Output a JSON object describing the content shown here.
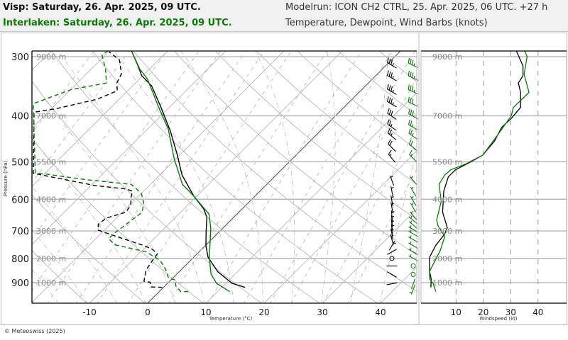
{
  "header": {
    "station1_title": "Visp: Saturday, 26. Apr. 2025, 09 UTC.",
    "station2_title": "Interlaken: Saturday, 26. Apr. 2025, 09 UTC.",
    "modelrun": "Modelrun: ICON CH2 CTRL, 25. Apr. 2025, 06 UTC. +27 h",
    "subtitle": "Temperature, Dewpoint, Wind Barbs (knots)"
  },
  "footer": {
    "copyright": "© Meteoswiss (2025)"
  },
  "colors": {
    "station1": "#000000",
    "station2": "#0a7a0a",
    "grid": "#aaaaaa",
    "header_bg": "#f0f0f0"
  },
  "chart_data": {
    "type": "line",
    "subtype": "skew-T log-p",
    "xlabel": "Temperature (°C)",
    "ylabel": "Pressure (hPa)",
    "x_ticks": [
      "-10",
      "0",
      "10",
      "20",
      "30",
      "40"
    ],
    "x_tick_values": [
      -10,
      0,
      10,
      20,
      30,
      40
    ],
    "y_ticks": [
      "300",
      "400",
      "500",
      "600",
      "700",
      "800",
      "900"
    ],
    "y_tick_values": [
      300,
      400,
      500,
      600,
      700,
      800,
      900
    ],
    "y_scale": "log",
    "ylim": [
      1000,
      290
    ],
    "height_labels": [
      {
        "p": 300,
        "label": "9000 m"
      },
      {
        "p": 400,
        "label": "7000 m"
      },
      {
        "p": 500,
        "label": "5500 m"
      },
      {
        "p": 600,
        "label": "4000 m"
      },
      {
        "p": 700,
        "label": "3000 m"
      },
      {
        "p": 800,
        "label": "2000 m"
      },
      {
        "p": 900,
        "label": "1000 m"
      }
    ],
    "grid": true,
    "series": [
      {
        "name": "Visp",
        "kind": "temperature",
        "color": "#000000",
        "style": "solid",
        "points": [
          [
            921,
            14.0
          ],
          [
            903,
            11.1
          ],
          [
            853,
            6.6
          ],
          [
            796,
            2.5
          ],
          [
            752,
            0.1
          ],
          [
            700,
            -2.4
          ],
          [
            655,
            -4.6
          ],
          [
            629,
            -6.6
          ],
          [
            591,
            -10.5
          ],
          [
            533,
            -16.2
          ],
          [
            483,
            -20.5
          ],
          [
            431,
            -25.7
          ],
          [
            384,
            -31.4
          ],
          [
            346,
            -36.7
          ],
          [
            329,
            -40.2
          ],
          [
            312,
            -42.8
          ],
          [
            290,
            -46.5
          ]
        ]
      },
      {
        "name": "Interlaken",
        "kind": "temperature",
        "color": "#0a7a0a",
        "style": "solid",
        "points": [
          [
            940,
            12.1
          ],
          [
            903,
            8.4
          ],
          [
            862,
            5.8
          ],
          [
            796,
            2.7
          ],
          [
            692,
            -2.0
          ],
          [
            645,
            -4.8
          ],
          [
            591,
            -10.5
          ],
          [
            558,
            -14.5
          ],
          [
            520,
            -17.8
          ],
          [
            494,
            -20.2
          ],
          [
            426,
            -26.5
          ],
          [
            384,
            -31.8
          ],
          [
            334,
            -38.7
          ],
          [
            319,
            -41.6
          ],
          [
            290,
            -46.5
          ]
        ]
      },
      {
        "name": "Visp",
        "kind": "dewpoint",
        "color": "#000000",
        "style": "dashed",
        "points": [
          [
            921,
            -0.2
          ],
          [
            919,
            -2.2
          ],
          [
            898,
            -3.2
          ],
          [
            894,
            -4.4
          ],
          [
            846,
            -6.0
          ],
          [
            803,
            -6.6
          ],
          [
            783,
            -6.8
          ],
          [
            765,
            -8.5
          ],
          [
            752,
            -10.5
          ],
          [
            710,
            -18.6
          ],
          [
            697,
            -21.1
          ],
          [
            677,
            -22.1
          ],
          [
            657,
            -21.7
          ],
          [
            639,
            -19.4
          ],
          [
            617,
            -19.8
          ],
          [
            594,
            -21.1
          ],
          [
            577,
            -21.9
          ],
          [
            571,
            -23.3
          ],
          [
            561,
            -29.4
          ],
          [
            529,
            -42.0
          ],
          [
            393,
            -52.4
          ],
          [
            386,
            -49.1
          ],
          [
            369,
            -43.8
          ],
          [
            354,
            -41.8
          ],
          [
            341,
            -43.2
          ],
          [
            326,
            -44.0
          ],
          [
            305,
            -46.7
          ],
          [
            293,
            -49.9
          ]
        ]
      },
      {
        "name": "Interlaken",
        "kind": "dewpoint",
        "color": "#0a7a0a",
        "style": "dashed",
        "points": [
          [
            940,
            5.0
          ],
          [
            940,
            3.7
          ],
          [
            915,
            1.9
          ],
          [
            888,
            0.7
          ],
          [
            881,
            -0.7
          ],
          [
            846,
            -2.6
          ],
          [
            808,
            -5.2
          ],
          [
            775,
            -9.1
          ],
          [
            749,
            -15.6
          ],
          [
            727,
            -17.8
          ],
          [
            710,
            -17.8
          ],
          [
            661,
            -17.0
          ],
          [
            639,
            -16.6
          ],
          [
            610,
            -18.0
          ],
          [
            583,
            -20.0
          ],
          [
            558,
            -23.3
          ],
          [
            546,
            -31.6
          ],
          [
            527,
            -41.8
          ],
          [
            377,
            -54.0
          ],
          [
            352,
            -49.9
          ],
          [
            341,
            -45.0
          ],
          [
            319,
            -47.5
          ],
          [
            298,
            -50.5
          ],
          [
            290,
            -50.3
          ]
        ]
      }
    ],
    "wind_barbs": [
      {
        "name": "Visp",
        "color": "#000000",
        "barbs": [
          [
            313,
            300,
            35
          ],
          [
            333,
            300,
            35
          ],
          [
            356,
            300,
            34
          ],
          [
            378,
            300,
            34
          ],
          [
            401,
            305,
            30
          ],
          [
            423,
            305,
            27
          ],
          [
            442,
            310,
            25
          ],
          [
            467,
            315,
            22
          ],
          [
            492,
            320,
            17
          ],
          [
            548,
            340,
            7
          ],
          [
            578,
            350,
            6
          ],
          [
            605,
            350,
            5
          ],
          [
            625,
            350,
            5
          ],
          [
            650,
            355,
            6
          ],
          [
            665,
            355,
            7
          ],
          [
            680,
            355,
            7
          ],
          [
            695,
            355,
            7
          ],
          [
            710,
            350,
            6
          ],
          [
            730,
            345,
            4
          ],
          [
            752,
            30,
            3
          ],
          [
            775,
            60,
            2
          ],
          [
            800,
            0,
            0
          ],
          [
            830,
            90,
            1
          ],
          [
            865,
            120,
            1
          ],
          [
            905,
            80,
            1
          ]
        ]
      },
      {
        "name": "Interlaken",
        "color": "#0a7a0a",
        "barbs": [
          [
            313,
            295,
            36
          ],
          [
            333,
            295,
            35
          ],
          [
            356,
            295,
            36
          ],
          [
            378,
            295,
            32
          ],
          [
            401,
            300,
            30
          ],
          [
            423,
            300,
            27
          ],
          [
            442,
            305,
            25
          ],
          [
            467,
            310,
            21
          ],
          [
            492,
            315,
            16
          ],
          [
            548,
            320,
            4
          ],
          [
            578,
            330,
            4
          ],
          [
            605,
            330,
            5
          ],
          [
            625,
            330,
            4
          ],
          [
            650,
            320,
            3
          ],
          [
            665,
            310,
            3
          ],
          [
            680,
            310,
            3
          ],
          [
            695,
            300,
            4
          ],
          [
            710,
            300,
            5
          ],
          [
            730,
            300,
            6
          ],
          [
            752,
            300,
            5
          ],
          [
            775,
            300,
            4
          ],
          [
            800,
            300,
            3
          ],
          [
            830,
            0,
            0
          ],
          [
            865,
            0,
            0
          ],
          [
            905,
            200,
            2
          ],
          [
            930,
            200,
            3
          ]
        ]
      }
    ],
    "windspeed_panel": {
      "xlabel": "Windspeed (kt)",
      "x_ticks": [
        "10",
        "20",
        "30",
        "40"
      ],
      "x_tick_values": [
        10,
        20,
        30,
        40
      ],
      "series": [
        {
          "name": "Visp",
          "color": "#000000",
          "points": [
            [
              921,
              0.8
            ],
            [
              883,
              0.9
            ],
            [
              852,
              0.3
            ],
            [
              796,
              0.3
            ],
            [
              752,
              2.5
            ],
            [
              710,
              5.9
            ],
            [
              689,
              6.8
            ],
            [
              639,
              5.1
            ],
            [
              577,
              5.5
            ],
            [
              538,
              7.2
            ],
            [
              520,
              9.8
            ],
            [
              500,
              15.5
            ],
            [
              484,
              19.8
            ],
            [
              452,
              24.1
            ],
            [
              423,
              26.7
            ],
            [
              405,
              30.2
            ],
            [
              384,
              33.6
            ],
            [
              357,
              33.6
            ],
            [
              341,
              32.8
            ],
            [
              329,
              34.5
            ],
            [
              314,
              34.5
            ],
            [
              290,
              31.9
            ]
          ]
        },
        {
          "name": "Interlaken",
          "color": "#0a7a0a",
          "points": [
            [
              940,
              2.6
            ],
            [
              903,
              1.6
            ],
            [
              884,
              0.3
            ],
            [
              852,
              0.3
            ],
            [
              824,
              1.6
            ],
            [
              770,
              4.2
            ],
            [
              719,
              5.9
            ],
            [
              683,
              3.4
            ],
            [
              664,
              2.9
            ],
            [
              606,
              4.6
            ],
            [
              558,
              3.8
            ],
            [
              533,
              5.9
            ],
            [
              520,
              8.1
            ],
            [
              505,
              13.7
            ],
            [
              484,
              19.8
            ],
            [
              441,
              25.0
            ],
            [
              400,
              30.2
            ],
            [
              384,
              31.0
            ],
            [
              357,
              36.7
            ],
            [
              327,
              34.9
            ],
            [
              300,
              36.0
            ],
            [
              290,
              34.9
            ]
          ]
        }
      ]
    }
  }
}
